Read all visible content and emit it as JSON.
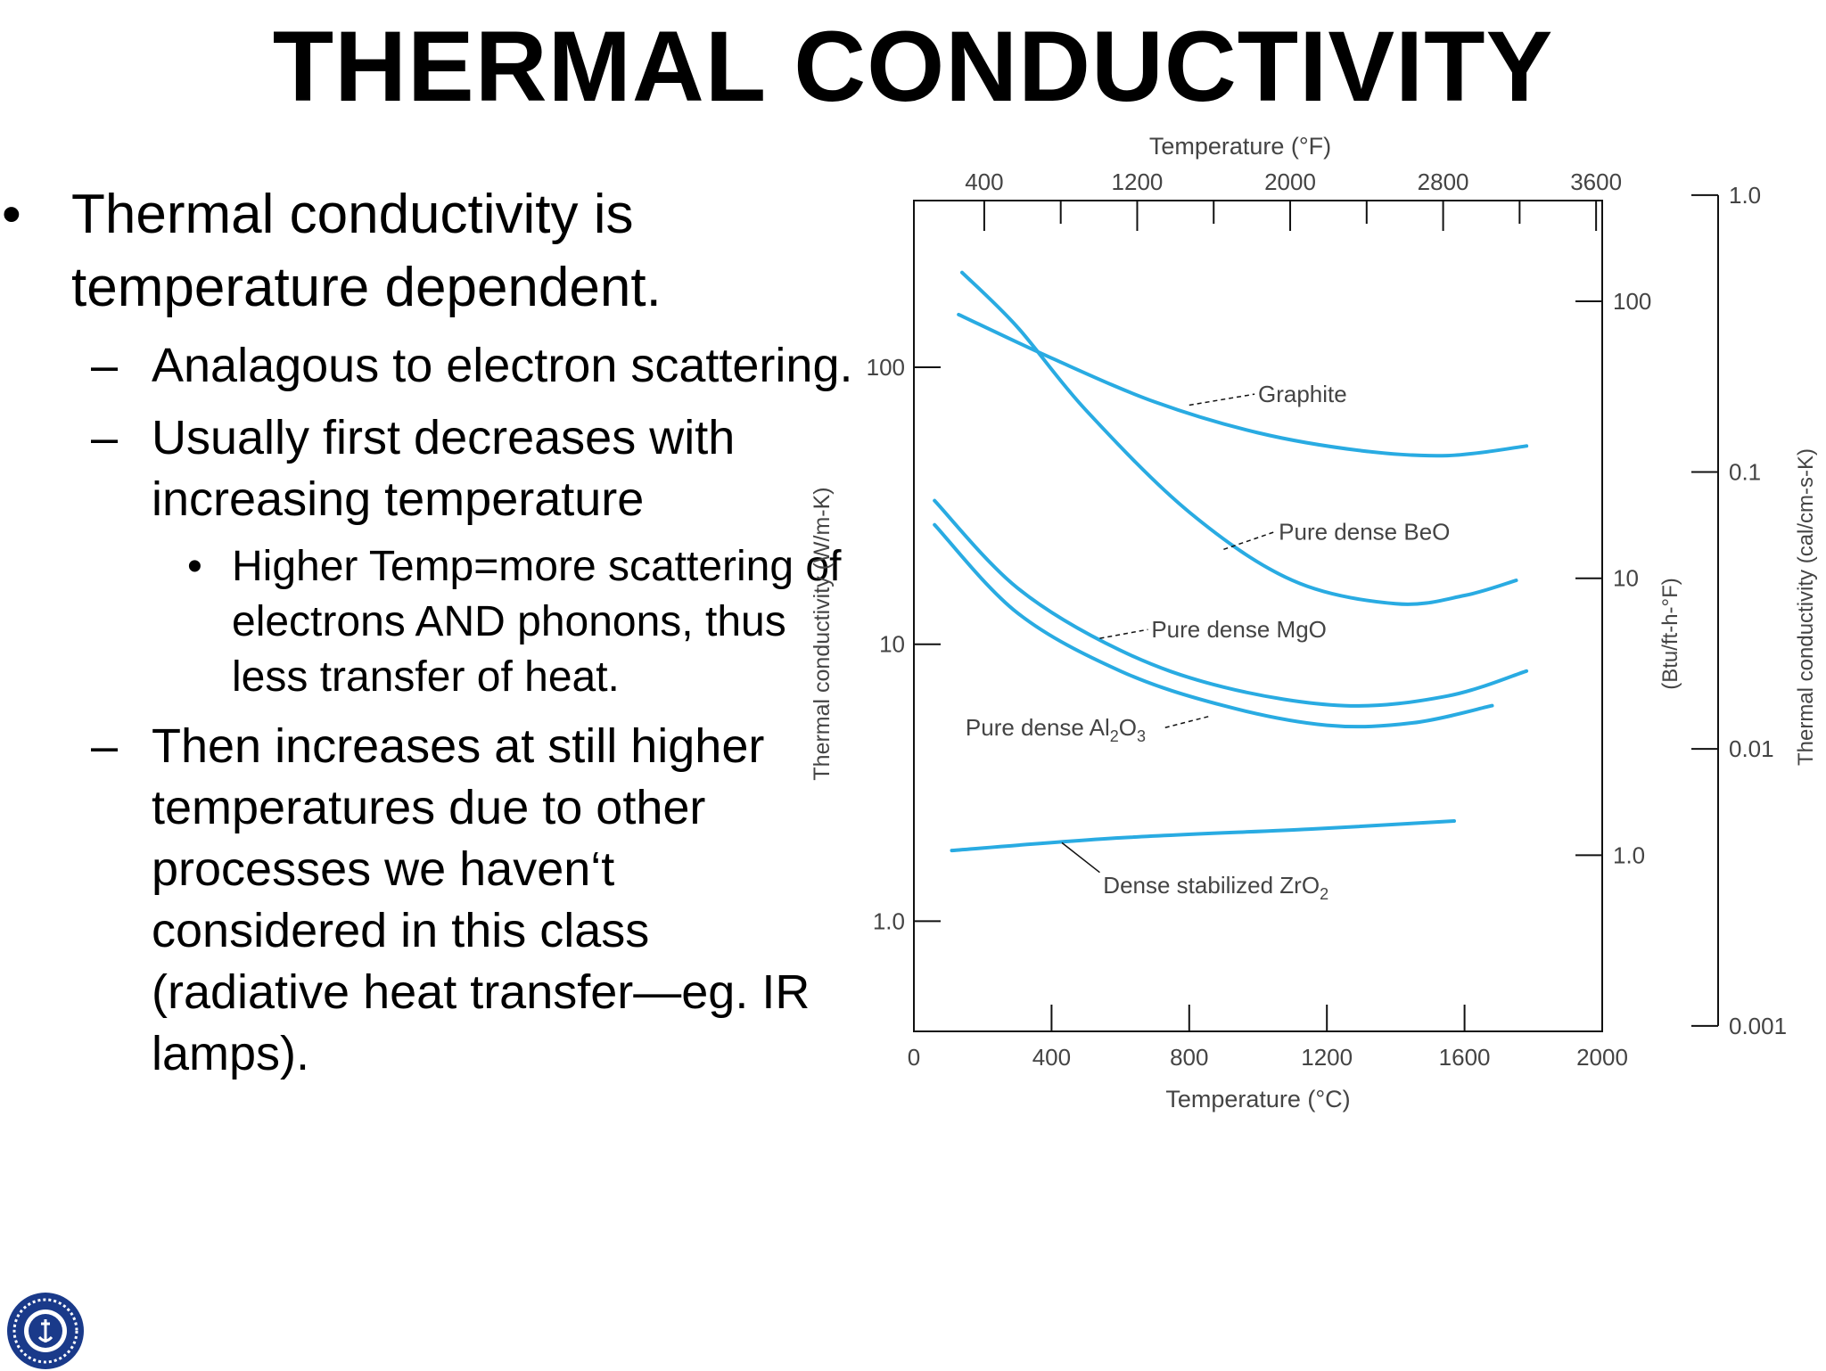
{
  "slide": {
    "title": "THERMAL CONDUCTIVITY",
    "bullets": {
      "main": "Thermal conductivity is temperature dependent.",
      "sub1": "Analagous to electron scattering.",
      "sub2": "Usually first decreases with increasing temperature",
      "sub2_detail": "Higher Temp=more scattering of electrons AND phonons, thus less transfer of heat.",
      "sub3": "Then increases at still higher temperatures due to other processes we haven‘t considered in this class (radiative heat transfer—eg. IR lamps)."
    },
    "markers": {
      "bullet": "•",
      "dash": "–",
      "small_bullet": "•"
    }
  },
  "colors": {
    "curve": "#29abe2",
    "axis": "#111111",
    "label": "#444444"
  },
  "chart_data": {
    "type": "line",
    "xlabel": "Temperature (°C)",
    "x_top_label": "Temperature (°F)",
    "ylabel": "Thermal conductivity (W/m-K)",
    "y_right_label_1": "(Btu/ft-h-°F)",
    "y_right_label_2": "Thermal conductivity (cal/cm-s-K)",
    "xlim": [
      0,
      2000
    ],
    "x_top_lim_F": [
      32,
      3632
    ],
    "ylim_log": [
      0.4,
      400
    ],
    "x_ticks": [
      0,
      400,
      800,
      1200,
      1600,
      2000
    ],
    "x_tick_labels": [
      "0",
      "400",
      "800",
      "1200",
      "1600",
      "2000"
    ],
    "x_top_ticks": [
      400,
      1200,
      2000,
      2800,
      3600
    ],
    "x_top_tick_labels": [
      "400",
      "1200",
      "2000",
      "2800",
      "3600"
    ],
    "y_ticks": [
      1,
      10,
      100
    ],
    "y_tick_labels": [
      "1.0",
      "10",
      "100"
    ],
    "y_right1_ticks": [
      1.0,
      10,
      100
    ],
    "y_right1_tick_labels": [
      "1.0",
      "10",
      "100"
    ],
    "y_right2_ticks": [
      0.001,
      0.01,
      0.1,
      1.0
    ],
    "y_right2_tick_labels": [
      "0.001",
      "0.01",
      "0.1",
      "1.0"
    ],
    "series": [
      {
        "name": "Graphite",
        "x": [
          130,
          400,
          700,
          1000,
          1300,
          1550,
          1780
        ],
        "y": [
          155,
          108,
          75,
          58,
          50,
          48,
          52
        ]
      },
      {
        "name": "Pure dense BeO",
        "x": [
          140,
          300,
          500,
          800,
          1100,
          1400,
          1600,
          1750
        ],
        "y": [
          220,
          140,
          70,
          30,
          17,
          14,
          15,
          17
        ]
      },
      {
        "name": "Pure dense MgO",
        "x": [
          60,
          300,
          600,
          900,
          1250,
          1550,
          1780
        ],
        "y": [
          33,
          16,
          9.5,
          7,
          6,
          6.5,
          8
        ]
      },
      {
        "name": "Pure dense Al2O3",
        "x": [
          60,
          300,
          600,
          900,
          1200,
          1450,
          1680
        ],
        "y": [
          27,
          13,
          8,
          6,
          5.1,
          5.2,
          6
        ]
      },
      {
        "name": "Dense stabilized ZrO2",
        "x": [
          110,
          600,
          1150,
          1570
        ],
        "y": [
          1.8,
          2.0,
          2.15,
          2.3
        ]
      }
    ],
    "annotations": [
      {
        "text": "Graphite"
      },
      {
        "text": "Pure dense BeO"
      },
      {
        "text": "Pure dense MgO"
      },
      {
        "text_main": "Pure dense Al",
        "sub1": "2",
        "mid": "O",
        "sub2": "3"
      },
      {
        "text_main": "Dense stabilized ZrO",
        "sub1": "2"
      }
    ]
  }
}
